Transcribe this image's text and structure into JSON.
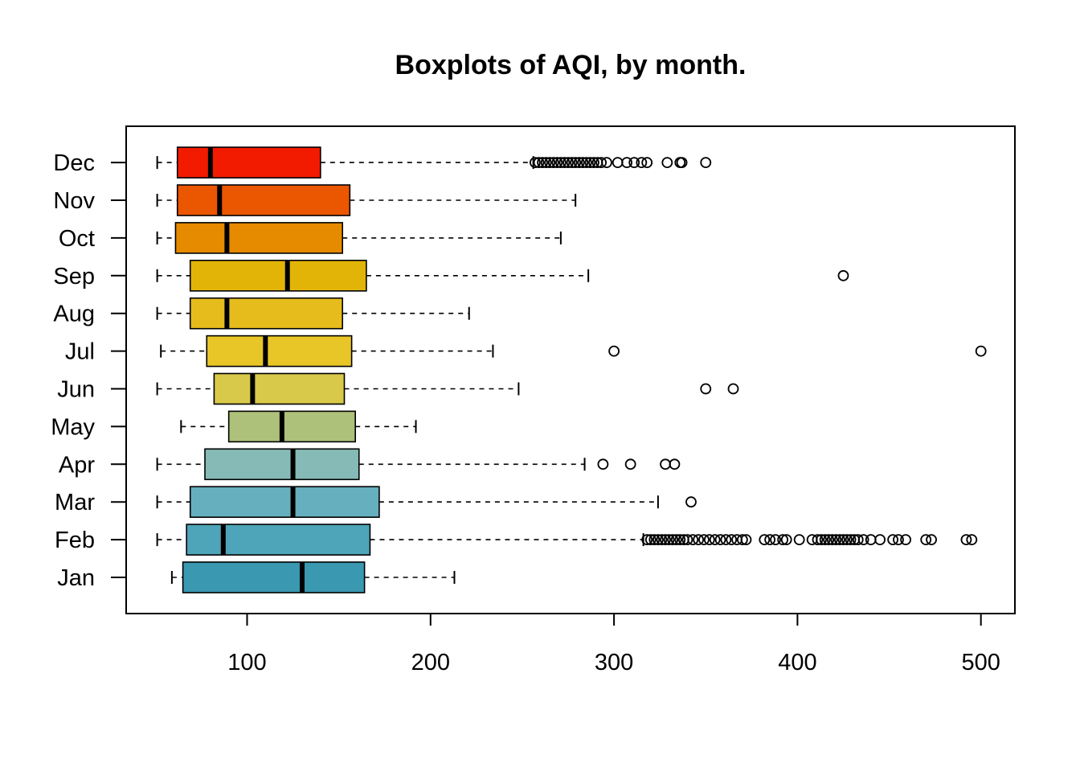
{
  "chart_data": {
    "type": "boxplot",
    "orientation": "horizontal",
    "title": "Boxplots of AQI, by month.",
    "xlabel": "",
    "ylabel": "",
    "xlim": [
      33,
      518
    ],
    "x_ticks": [
      100,
      200,
      300,
      400,
      500
    ],
    "x_tick_labels": [
      "100",
      "200",
      "300",
      "400",
      "500"
    ],
    "categories": [
      "Jan",
      "Feb",
      "Mar",
      "Apr",
      "May",
      "Jun",
      "Jul",
      "Aug",
      "Sep",
      "Oct",
      "Nov",
      "Dec"
    ],
    "series": [
      {
        "category": "Jan",
        "color": "#3A98B0",
        "whisker_low": 59,
        "q1": 65,
        "median": 130,
        "q3": 164,
        "whisker_high": 213,
        "outliers": []
      },
      {
        "category": "Feb",
        "color": "#4EA4B8",
        "whisker_low": 51,
        "q1": 67,
        "median": 87,
        "q3": 167,
        "whisker_high": 316,
        "outliers": [
          318,
          320,
          322,
          324,
          326,
          328,
          330,
          332,
          334,
          336,
          338,
          340,
          343,
          346,
          349,
          352,
          355,
          358,
          361,
          364,
          367,
          370,
          372,
          382,
          385,
          388,
          392,
          394,
          401,
          408,
          411,
          413,
          415,
          417,
          419,
          421,
          423,
          425,
          427,
          429,
          431,
          433,
          436,
          440,
          445,
          452,
          455,
          459,
          470,
          473,
          492,
          495
        ]
      },
      {
        "category": "Mar",
        "color": "#66AFBE",
        "whisker_low": 51,
        "q1": 69,
        "median": 125,
        "q3": 172,
        "whisker_high": 324,
        "outliers": [
          342
        ]
      },
      {
        "category": "Apr",
        "color": "#85BAB6",
        "whisker_low": 51,
        "q1": 77,
        "median": 125,
        "q3": 161,
        "whisker_high": 284,
        "outliers": [
          294,
          309,
          328,
          333
        ]
      },
      {
        "category": "May",
        "color": "#ADC17A",
        "whisker_low": 64,
        "q1": 90,
        "median": 119,
        "q3": 159,
        "whisker_high": 192,
        "outliers": []
      },
      {
        "category": "Jun",
        "color": "#D8C94A",
        "whisker_low": 51,
        "q1": 82,
        "median": 103,
        "q3": 153,
        "whisker_high": 248,
        "outliers": [
          350,
          365
        ]
      },
      {
        "category": "Jul",
        "color": "#E9C628",
        "whisker_low": 53,
        "q1": 78,
        "median": 110,
        "q3": 157,
        "whisker_high": 234,
        "outliers": [
          300,
          500
        ]
      },
      {
        "category": "Aug",
        "color": "#E5BC1C",
        "whisker_low": 51,
        "q1": 69,
        "median": 89,
        "q3": 152,
        "whisker_high": 221,
        "outliers": []
      },
      {
        "category": "Sep",
        "color": "#E2B407",
        "whisker_low": 51,
        "q1": 69,
        "median": 122,
        "q3": 165,
        "whisker_high": 286,
        "outliers": [
          425
        ]
      },
      {
        "category": "Oct",
        "color": "#E68A00",
        "whisker_low": 51,
        "q1": 61,
        "median": 89,
        "q3": 152,
        "whisker_high": 271,
        "outliers": []
      },
      {
        "category": "Nov",
        "color": "#EB5600",
        "whisker_low": 51,
        "q1": 62,
        "median": 85,
        "q3": 156,
        "whisker_high": 279,
        "outliers": []
      },
      {
        "category": "Dec",
        "color": "#F21B00",
        "whisker_low": 51,
        "q1": 62,
        "median": 80,
        "q3": 140,
        "whisker_high": 256,
        "outliers": [
          257,
          259,
          261,
          263,
          265,
          267,
          269,
          271,
          273,
          275,
          277,
          279,
          281,
          283,
          285,
          287,
          289,
          291,
          293,
          296,
          302,
          307,
          311,
          315,
          318,
          329,
          336,
          337,
          350
        ]
      }
    ],
    "grid": false,
    "legend": "none"
  }
}
